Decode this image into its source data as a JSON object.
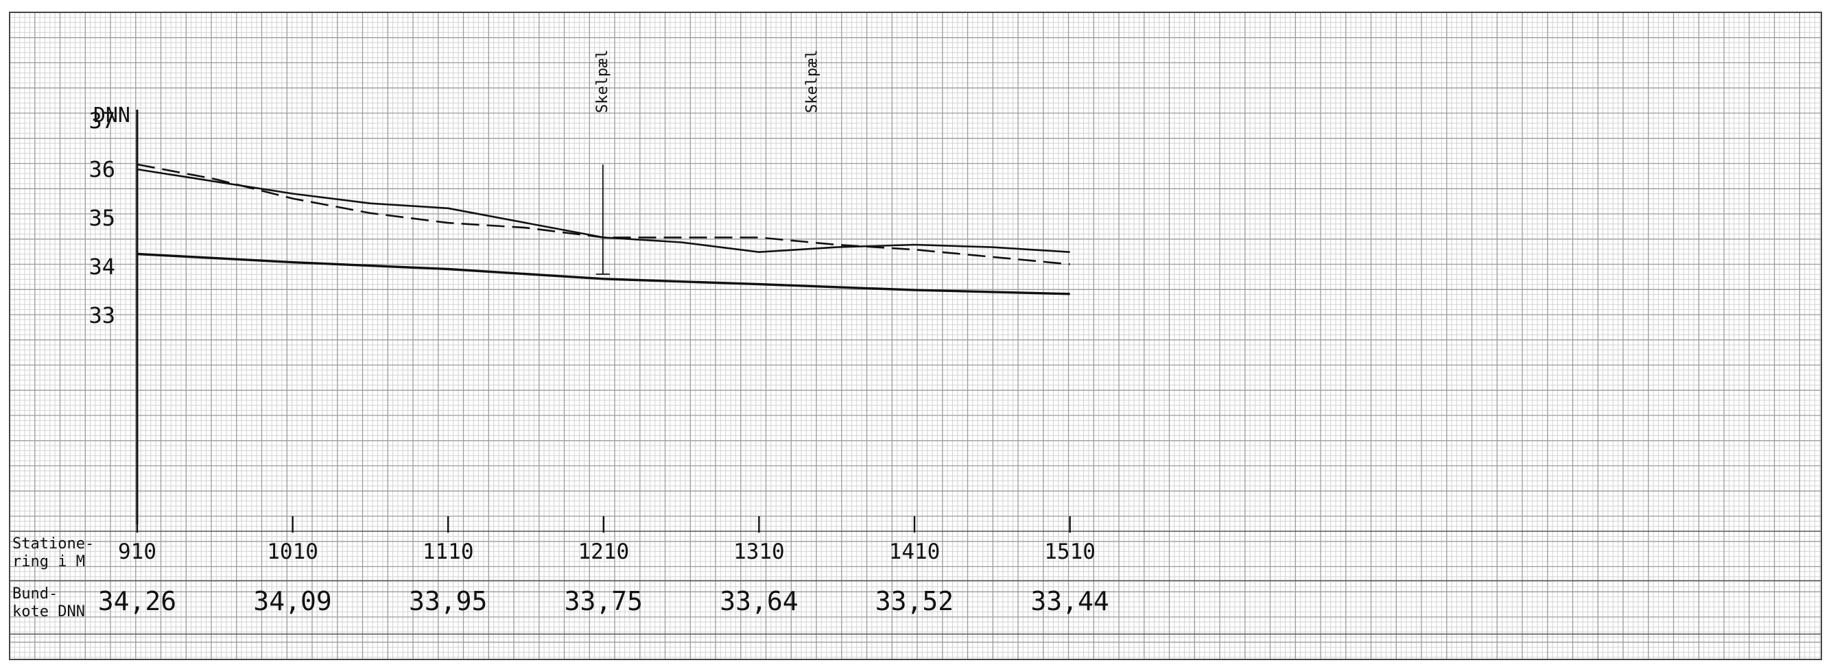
{
  "chart_data": {
    "type": "line",
    "title": "",
    "ylabel": "DNN",
    "xlabel": "",
    "x_ticks": [
      910,
      1010,
      1110,
      1210,
      1310,
      1410,
      1510
    ],
    "y_ticks": [
      33,
      34,
      35,
      36,
      37
    ],
    "xlim": [
      860,
      1560
    ],
    "ylim": [
      29.2,
      38.6
    ],
    "grid": true,
    "series": [
      {
        "style": "solid",
        "x": [
          910,
          960,
          1010,
          1060,
          1110,
          1160,
          1210,
          1260,
          1310,
          1360,
          1410,
          1460,
          1510
        ],
        "y": [
          36.0,
          35.75,
          35.5,
          35.3,
          35.2,
          34.9,
          34.6,
          34.5,
          34.3,
          34.4,
          34.45,
          34.4,
          34.3
        ]
      },
      {
        "style": "dashed",
        "x": [
          910,
          960,
          1010,
          1060,
          1110,
          1160,
          1210,
          1260,
          1310,
          1360,
          1410,
          1460,
          1510
        ],
        "y": [
          36.1,
          35.8,
          35.4,
          35.1,
          34.9,
          34.8,
          34.6,
          34.6,
          34.6,
          34.45,
          34.35,
          34.2,
          34.05
        ]
      },
      {
        "style": "solid",
        "x": [
          910,
          1010,
          1110,
          1210,
          1310,
          1410,
          1510
        ],
        "y": [
          34.26,
          34.09,
          33.95,
          33.75,
          33.64,
          33.52,
          33.44
        ]
      }
    ],
    "annotations": [
      {
        "text": "Skelpæl",
        "x": 1210
      },
      {
        "text": "Skelpæl",
        "x": 1345
      }
    ],
    "table": {
      "row1_label": [
        "Statione-",
        "ring i M"
      ],
      "row2_label": [
        "Bund-",
        "kote DNN"
      ],
      "stations": [
        "910",
        "1010",
        "1110",
        "1210",
        "1310",
        "1410",
        "1510"
      ],
      "bundkote": [
        "34,26",
        "34,09",
        "33,95",
        "33,75",
        "33,64",
        "33,52",
        "33,44"
      ]
    },
    "colors": {
      "grid_fine": "#d2d2d2",
      "grid_major": "#9a9a9a",
      "ink": "#111111"
    }
  }
}
